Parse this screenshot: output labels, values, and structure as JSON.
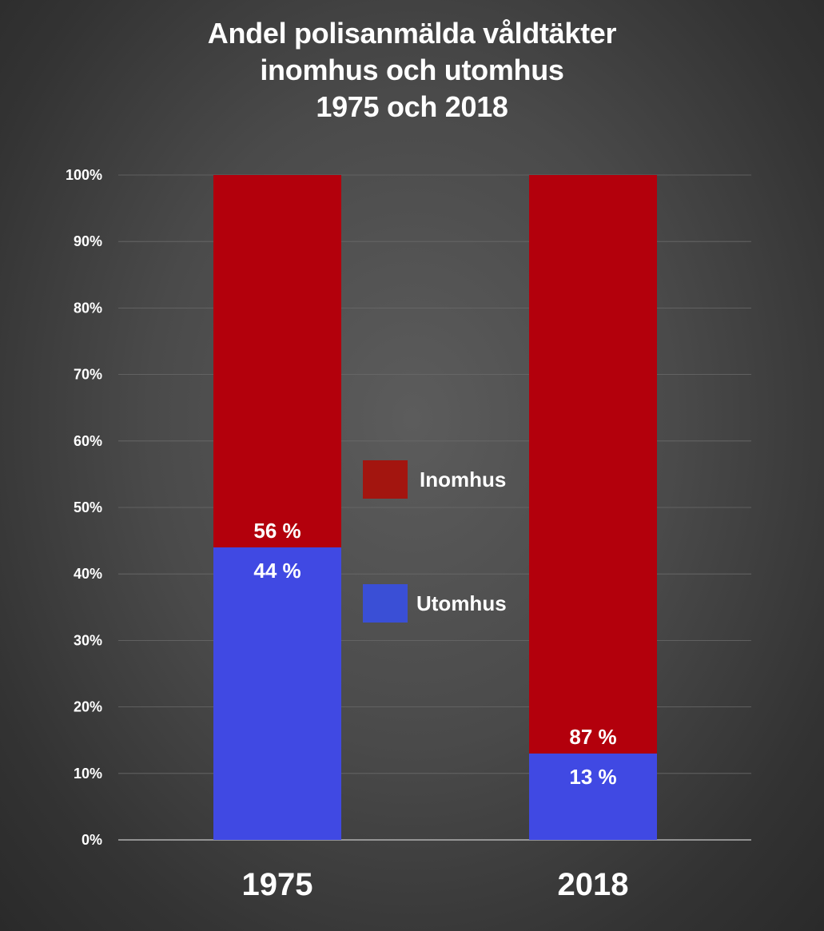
{
  "title_lines": [
    "Andel polisanmälda våldtäkter",
    "inomhus och utomhus",
    "1975 och 2018"
  ],
  "chart_data": {
    "type": "bar",
    "stacked": true,
    "title": "Andel polisanmälda våldtäkter inomhus och utomhus 1975 och 2018",
    "categories": [
      "1975",
      "2018"
    ],
    "series": [
      {
        "name": "Utomhus",
        "values": [
          44,
          13
        ],
        "labels": [
          "44 %",
          "13 %"
        ],
        "color": "#4049e3"
      },
      {
        "name": "Inomhus",
        "values": [
          56,
          87
        ],
        "labels": [
          "56 %",
          "87 %"
        ],
        "color": "#b3000c"
      }
    ],
    "ylim": [
      0,
      100
    ],
    "yticks": [
      "0%",
      "10%",
      "20%",
      "30%",
      "40%",
      "50%",
      "60%",
      "70%",
      "80%",
      "90%",
      "100%"
    ],
    "grid": true,
    "legend": {
      "placement": "center",
      "items": [
        {
          "label": "Inomhus",
          "color": "#a3150f"
        },
        {
          "label": "Utomhus",
          "color": "#3a4fd6"
        }
      ]
    }
  }
}
